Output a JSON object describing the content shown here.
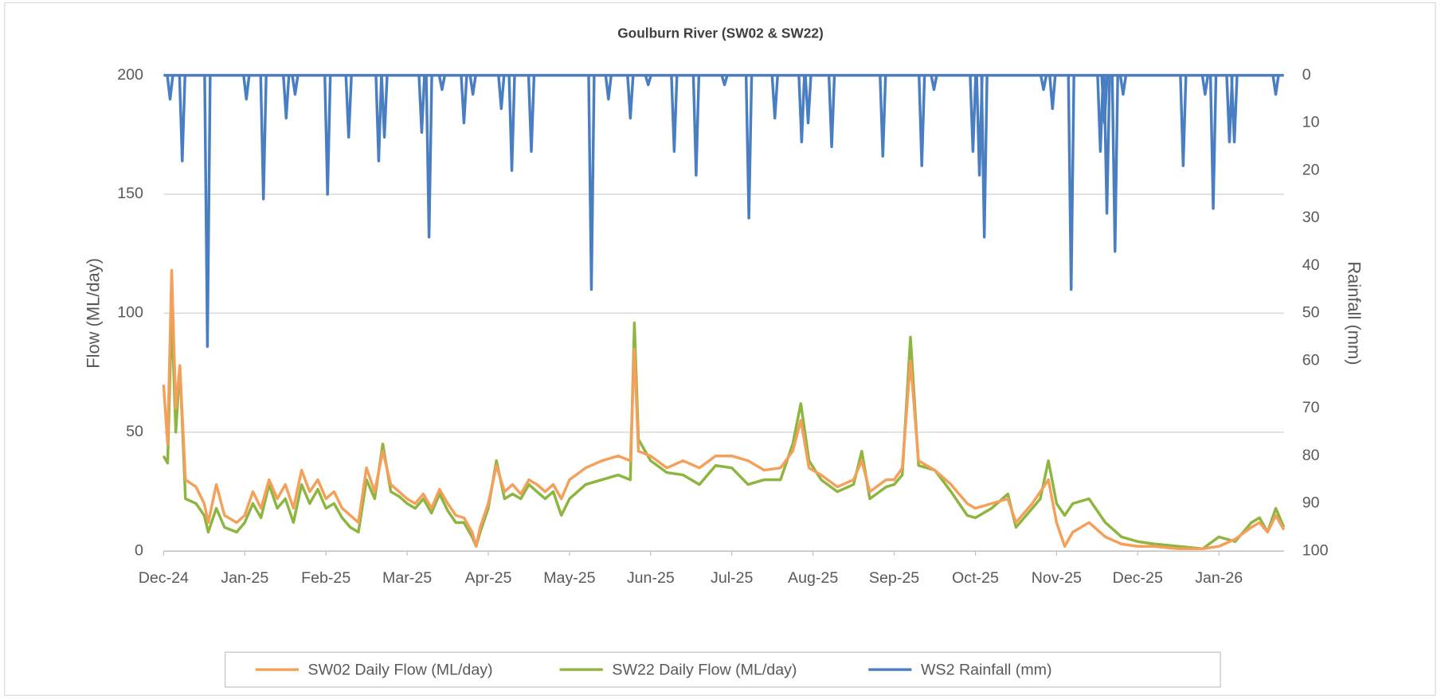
{
  "chart_data": {
    "type": "line",
    "title": "Goulburn River (SW02 & SW22)",
    "y_label": "Flow (ML/day)",
    "y2_label": "Rainfall (mm)",
    "legend": "bottom",
    "grid": true,
    "x": [
      0,
      0.05,
      0.1,
      0.15,
      0.2,
      0.27,
      0.4,
      0.5,
      0.55,
      0.65,
      0.75,
      0.9,
      1.0,
      1.1,
      1.2,
      1.3,
      1.4,
      1.5,
      1.6,
      1.7,
      1.8,
      1.9,
      2.0,
      2.1,
      2.2,
      2.3,
      2.4,
      2.5,
      2.6,
      2.7,
      2.8,
      2.9,
      3.0,
      3.1,
      3.2,
      3.3,
      3.4,
      3.5,
      3.6,
      3.7,
      3.8,
      3.85,
      3.9,
      4.0,
      4.1,
      4.2,
      4.3,
      4.4,
      4.5,
      4.6,
      4.7,
      4.8,
      4.9,
      5.0,
      5.2,
      5.4,
      5.6,
      5.75,
      5.8,
      5.85,
      6.0,
      6.2,
      6.4,
      6.6,
      6.8,
      7.0,
      7.2,
      7.4,
      7.6,
      7.75,
      7.85,
      7.95,
      8.1,
      8.3,
      8.5,
      8.6,
      8.7,
      8.9,
      9.0,
      9.1,
      9.2,
      9.3,
      9.5,
      9.7,
      9.9,
      10.0,
      10.2,
      10.4,
      10.5,
      10.7,
      10.8,
      10.9,
      11.0,
      11.1,
      11.2,
      11.4,
      11.6,
      11.8,
      12.0,
      12.2,
      12.5,
      12.8,
      13.0,
      13.2,
      13.4,
      13.5,
      13.6,
      13.7,
      13.8
    ],
    "xlim": [
      0,
      13.8
    ],
    "xticks": [
      {
        "value": 0,
        "label": "Dec-24"
      },
      {
        "value": 1,
        "label": "Jan-25"
      },
      {
        "value": 2,
        "label": "Feb-25"
      },
      {
        "value": 3,
        "label": "Mar-25"
      },
      {
        "value": 4,
        "label": "Apr-25"
      },
      {
        "value": 5,
        "label": "May-25"
      },
      {
        "value": 6,
        "label": "Jun-25"
      },
      {
        "value": 7,
        "label": "Jul-25"
      },
      {
        "value": 8,
        "label": "Aug-25"
      },
      {
        "value": 9,
        "label": "Sep-25"
      },
      {
        "value": 10,
        "label": "Oct-25"
      },
      {
        "value": 11,
        "label": "Nov-25"
      },
      {
        "value": 12,
        "label": "Dec-25"
      },
      {
        "value": 13,
        "label": "Jan-26"
      }
    ],
    "ylim": [
      0,
      200
    ],
    "yticks": [
      0,
      50,
      100,
      150,
      200
    ],
    "y2lim": [
      100,
      0
    ],
    "y2ticks": [
      0,
      10,
      20,
      30,
      40,
      50,
      60,
      70,
      80,
      90,
      100
    ],
    "series": [
      {
        "name": "SW02 Daily Flow (ML/day)",
        "color": "#f4a05a",
        "values": [
          70,
          45,
          118,
          60,
          78,
          30,
          27,
          20,
          12,
          28,
          15,
          12,
          15,
          25,
          18,
          30,
          22,
          28,
          18,
          34,
          25,
          30,
          22,
          25,
          18,
          15,
          12,
          35,
          25,
          42,
          28,
          25,
          22,
          20,
          24,
          18,
          26,
          20,
          15,
          14,
          8,
          2,
          10,
          20,
          36,
          25,
          28,
          24,
          30,
          28,
          25,
          28,
          22,
          30,
          35,
          38,
          40,
          38,
          85,
          42,
          40,
          35,
          38,
          35,
          40,
          40,
          38,
          34,
          35,
          42,
          55,
          35,
          32,
          27,
          30,
          38,
          25,
          30,
          30,
          35,
          80,
          38,
          34,
          28,
          20,
          18,
          20,
          22,
          12,
          20,
          25,
          30,
          12,
          2,
          8,
          12,
          6,
          3,
          2,
          2,
          1,
          1,
          2,
          5,
          10,
          12,
          8,
          15,
          9
        ]
      },
      {
        "name": "SW22 Daily Flow (ML/day)",
        "color": "#8db53f",
        "values": [
          40,
          37,
          100,
          50,
          78,
          22,
          20,
          15,
          8,
          18,
          10,
          8,
          12,
          20,
          14,
          28,
          18,
          22,
          12,
          28,
          20,
          26,
          18,
          20,
          14,
          10,
          8,
          30,
          22,
          45,
          25,
          23,
          20,
          18,
          22,
          16,
          24,
          17,
          12,
          12,
          6,
          2,
          8,
          18,
          38,
          22,
          24,
          22,
          28,
          25,
          22,
          25,
          15,
          22,
          28,
          30,
          32,
          30,
          96,
          47,
          38,
          33,
          32,
          28,
          36,
          35,
          28,
          30,
          30,
          45,
          62,
          38,
          30,
          25,
          28,
          42,
          22,
          27,
          28,
          32,
          90,
          36,
          34,
          25,
          15,
          14,
          18,
          24,
          10,
          18,
          22,
          38,
          20,
          15,
          20,
          22,
          12,
          6,
          4,
          3,
          2,
          1,
          6,
          4,
          12,
          14,
          8,
          18,
          10
        ]
      },
      {
        "name": "WS2 Rainfall (mm)",
        "color": "#4a7ec2",
        "axis": "y2",
        "type": "spike",
        "x": [
          0.08,
          0.23,
          0.54,
          1.02,
          1.23,
          1.51,
          1.62,
          2.02,
          2.28,
          2.65,
          2.72,
          3.18,
          3.27,
          3.43,
          3.7,
          3.81,
          4.16,
          4.29,
          4.53,
          5.27,
          5.48,
          5.75,
          5.97,
          6.29,
          6.56,
          6.91,
          7.21,
          7.53,
          7.86,
          7.94,
          8.23,
          8.86,
          9.34,
          9.49,
          9.97,
          10.05,
          10.11,
          10.84,
          10.95,
          11.18,
          11.54,
          11.59,
          11.62,
          11.72,
          11.82,
          12.56,
          12.83,
          12.93,
          13.13,
          13.19,
          13.7
        ],
        "values": [
          5,
          18,
          57,
          5,
          26,
          9,
          4,
          25,
          13,
          18,
          13,
          12,
          34,
          3,
          10,
          4,
          7,
          20,
          16,
          45,
          5,
          9,
          2,
          16,
          21,
          2,
          30,
          9,
          14,
          10,
          15,
          17,
          19,
          3,
          16,
          21,
          34,
          3,
          7,
          45,
          16,
          10,
          29,
          37,
          4,
          19,
          4,
          28,
          14,
          14,
          4
        ]
      }
    ]
  }
}
